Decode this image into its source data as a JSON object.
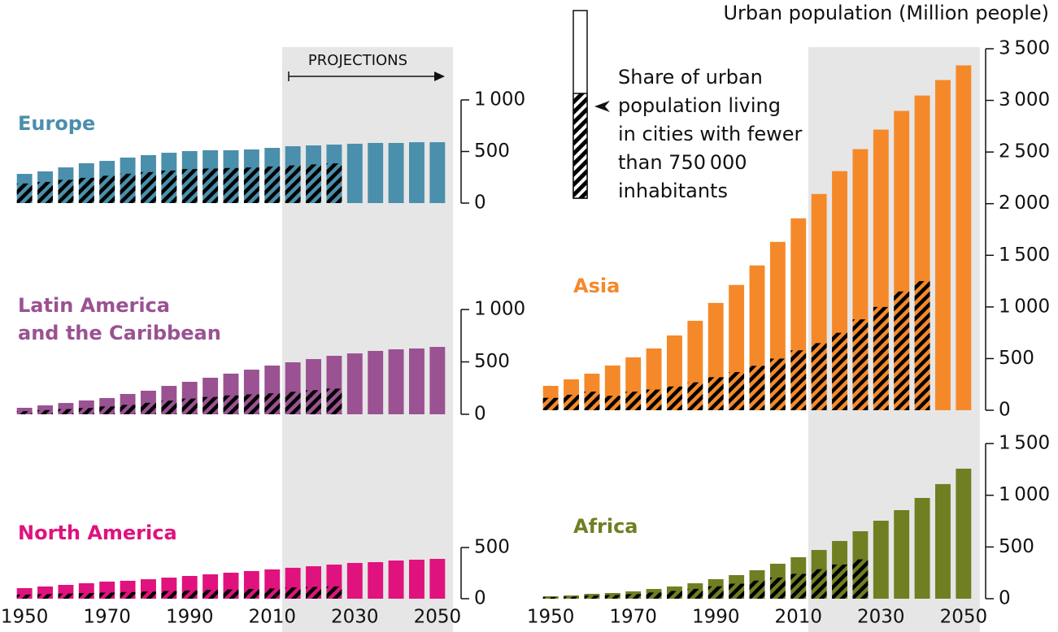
{
  "y_axis_label": "Urban population (Million people)",
  "projection_label": "PROJECTIONS",
  "legend": {
    "label_lines": [
      "Share of urban",
      "population living",
      "in cities with fewer",
      "than 750 000",
      "inhabitants"
    ]
  },
  "chart_data": [
    {
      "type": "bar",
      "title": [
        "Europe"
      ],
      "color": "#4a8fab",
      "x": [
        1950,
        1955,
        1960,
        1965,
        1970,
        1975,
        1980,
        1985,
        1990,
        1995,
        2000,
        2005,
        2010,
        2015,
        2020,
        2025,
        2030,
        2035,
        2040,
        2045,
        2050
      ],
      "xlim": [
        1948,
        2052
      ],
      "values": [
        283,
        307,
        346,
        386,
        409,
        441,
        465,
        488,
        504,
        512,
        512,
        520,
        535,
        551,
        559,
        567,
        575,
        583,
        583,
        590,
        590
      ],
      "hatched_values": [
        190,
        205,
        225,
        245,
        265,
        285,
        300,
        315,
        330,
        335,
        340,
        345,
        355,
        365,
        375,
        385,
        null,
        null,
        null,
        null,
        null
      ],
      "ylim": [
        0,
        1000
      ],
      "yticks": [
        0,
        500,
        {
          "value": 1000,
          "label": "1 000"
        }
      ]
    },
    {
      "type": "bar",
      "title": [
        "Latin America",
        "and the Caribbean"
      ],
      "color": "#9a5292",
      "x": [
        1950,
        1955,
        1960,
        1965,
        1970,
        1975,
        1980,
        1985,
        1990,
        1995,
        2000,
        2005,
        2010,
        2015,
        2020,
        2025,
        2030,
        2035,
        2040,
        2045,
        2050
      ],
      "xlim": [
        1948,
        2052
      ],
      "values": [
        62,
        85,
        108,
        132,
        155,
        194,
        225,
        271,
        310,
        349,
        388,
        426,
        465,
        496,
        527,
        558,
        581,
        605,
        620,
        628,
        643
      ],
      "hatched_values": [
        30,
        40,
        50,
        60,
        75,
        90,
        110,
        130,
        150,
        165,
        180,
        190,
        200,
        215,
        230,
        245,
        null,
        null,
        null,
        null,
        null
      ],
      "ylim": [
        0,
        1000
      ],
      "yticks": [
        0,
        500,
        {
          "value": 1000,
          "label": "1 000"
        }
      ]
    },
    {
      "type": "bar",
      "title": [
        "North America"
      ],
      "color": "#e0127d",
      "x": [
        1950,
        1955,
        1960,
        1965,
        1970,
        1975,
        1980,
        1985,
        1990,
        1995,
        2000,
        2005,
        2010,
        2015,
        2020,
        2025,
        2030,
        2035,
        2040,
        2045,
        2050
      ],
      "xlim": [
        1948,
        2052
      ],
      "xticks": [
        1950,
        1970,
        1990,
        2010,
        2030,
        2050
      ],
      "values": [
        103,
        119,
        135,
        151,
        167,
        175,
        190,
        206,
        222,
        238,
        254,
        270,
        286,
        302,
        317,
        333,
        349,
        357,
        373,
        381,
        389
      ],
      "hatched_values": [
        40,
        45,
        50,
        55,
        60,
        65,
        70,
        75,
        80,
        85,
        90,
        95,
        100,
        110,
        115,
        120,
        null,
        null,
        null,
        null,
        null
      ],
      "ylim": [
        0,
        500
      ],
      "yticks": [
        0,
        500
      ]
    },
    {
      "type": "bar",
      "title": [
        "Asia"
      ],
      "color": "#f5892a",
      "x": [
        1950,
        1955,
        1960,
        1965,
        1970,
        1975,
        1980,
        1985,
        1990,
        1995,
        2000,
        2005,
        2010,
        2015,
        2020,
        2025,
        2030,
        2035,
        2040,
        2045,
        2050
      ],
      "xlim": [
        1948,
        2052
      ],
      "values": [
        236,
        299,
        354,
        433,
        512,
        598,
        724,
        866,
        1039,
        1213,
        1402,
        1630,
        1858,
        2094,
        2315,
        2528,
        2717,
        2898,
        3047,
        3197,
        3339
      ],
      "hatched_values": [
        120,
        150,
        180,
        140,
        180,
        200,
        230,
        270,
        320,
        370,
        430,
        500,
        580,
        650,
        750,
        880,
        1000,
        1150,
        1250,
        null,
        null
      ],
      "ylim": [
        0,
        3500
      ],
      "yticks": [
        0,
        500,
        {
          "value": 1000,
          "label": "1 000"
        },
        {
          "value": 1500,
          "label": "1 500"
        },
        {
          "value": 2000,
          "label": "2 000"
        },
        {
          "value": 2500,
          "label": "2 500"
        },
        {
          "value": 3000,
          "label": "3 000"
        },
        {
          "value": 3500,
          "label": "3 500"
        }
      ]
    },
    {
      "type": "bar",
      "title": [
        "Africa"
      ],
      "color": "#6f7f22",
      "x": [
        1950,
        1955,
        1960,
        1965,
        1970,
        1975,
        1980,
        1985,
        1990,
        1995,
        2000,
        2005,
        2010,
        2015,
        2020,
        2025,
        2030,
        2035,
        2040,
        2045,
        2050
      ],
      "xlim": [
        1948,
        2052
      ],
      "xticks": [
        1950,
        1970,
        1990,
        2010,
        2030,
        2050
      ],
      "values": [
        24,
        31,
        47,
        55,
        71,
        94,
        118,
        149,
        189,
        228,
        275,
        338,
        401,
        471,
        558,
        652,
        754,
        856,
        974,
        1108,
        1257
      ],
      "hatched_values": [
        15,
        20,
        30,
        35,
        45,
        60,
        75,
        95,
        120,
        145,
        175,
        205,
        240,
        285,
        330,
        380,
        null,
        null,
        null,
        null,
        null
      ],
      "ylim": [
        0,
        1500
      ],
      "yticks": [
        0,
        500,
        {
          "value": 1000,
          "label": "1 000"
        },
        {
          "value": 1500,
          "label": "1 500"
        }
      ]
    }
  ]
}
